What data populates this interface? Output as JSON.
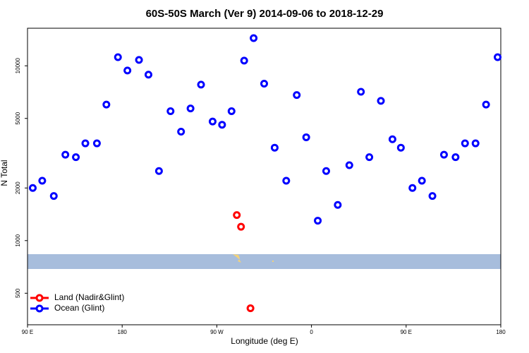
{
  "chart_data": {
    "type": "scatter",
    "title": "60S-50S March (Ver 9)   2014-09-06 to 2018-12-29",
    "x_label": "Longitude (deg E)",
    "y_label": "N Total",
    "y_log": true,
    "legend_position": "bottom-left",
    "xlim": [
      90,
      540
    ],
    "xticks": [
      {
        "value": 90,
        "label": "90 E"
      },
      {
        "value": 180,
        "label": "180"
      },
      {
        "value": 270,
        "label": "90 W"
      },
      {
        "value": 360,
        "label": "0"
      },
      {
        "value": 450,
        "label": "90 E"
      },
      {
        "value": 540,
        "label": "180"
      }
    ],
    "ylim": [
      330,
      16400
    ],
    "yticks": [
      500,
      1000,
      2000,
      5000,
      10000
    ],
    "series": [
      {
        "name": "Land (Nadir&Glint)",
        "color": "#ff0000",
        "x": [
          289,
          293,
          302
        ],
        "values": [
          1400,
          1200,
          410
        ]
      },
      {
        "name": "Ocean (Glint)",
        "color": "#0000ff",
        "x": [
          95,
          104,
          115,
          126,
          136,
          145,
          156,
          165,
          176,
          185,
          196,
          205,
          215,
          226,
          236,
          245,
          255,
          266,
          275,
          284,
          296,
          305,
          315,
          325,
          336,
          346,
          355,
          366,
          374,
          385,
          396,
          407,
          415,
          426,
          437,
          445,
          456,
          465,
          475,
          486,
          497,
          506,
          516,
          526,
          537
        ],
        "values": [
          2000,
          2200,
          1800,
          3100,
          3000,
          3600,
          3600,
          6000,
          11200,
          9400,
          10800,
          8900,
          2500,
          5500,
          4200,
          5700,
          7800,
          4800,
          4600,
          5500,
          10700,
          14400,
          7900,
          3400,
          2200,
          6800,
          3900,
          1300,
          2500,
          1600,
          2700,
          7100,
          3000,
          6300,
          3800,
          3400,
          2000,
          2200,
          1800,
          3100,
          3000,
          3600,
          3600,
          6000,
          11200
        ]
      }
    ]
  }
}
